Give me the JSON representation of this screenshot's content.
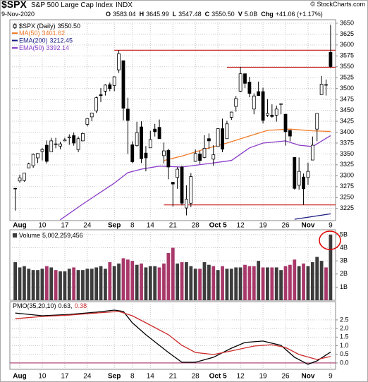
{
  "header": {
    "symbol": "$SPX",
    "name": "S&P 500 Large Cap Index",
    "exchange": "INDX",
    "credit": "© StockCharts.com",
    "date": "9-Nov-2020",
    "quote": [
      {
        "label": "O",
        "value": "3583.04"
      },
      {
        "label": "H",
        "value": "3645.99"
      },
      {
        "label": "L",
        "value": "3547.48"
      },
      {
        "label": "C",
        "value": "3550.50"
      },
      {
        "label": "V",
        "value": "5.0B"
      },
      {
        "label": "Chg",
        "value": "+41.06 (+1.17%)"
      }
    ]
  },
  "chart_data": [
    {
      "type": "candlestick",
      "name": "$SPX (Daily)",
      "last_label": "3550.50",
      "color": "#000000",
      "categories": [
        null,
        "Aug",
        null,
        null,
        null,
        null,
        "10",
        null,
        null,
        null,
        null,
        "17",
        null,
        null,
        null,
        null,
        "24",
        null,
        null,
        null,
        null,
        null,
        "Sep",
        null,
        null,
        null,
        "8",
        null,
        null,
        null,
        "14",
        null,
        null,
        null,
        null,
        "21",
        null,
        null,
        null,
        null,
        "28",
        null,
        null,
        null,
        null,
        "Oct 5",
        null,
        null,
        null,
        null,
        "12",
        null,
        null,
        null,
        null,
        "19",
        null,
        null,
        null,
        null,
        "26",
        null,
        null,
        null,
        null,
        "Nov",
        null,
        null,
        null,
        null,
        "9"
      ],
      "open": [
        3270,
        3288,
        3289,
        3318,
        3323,
        3341,
        3356,
        3370,
        3355,
        3372,
        3368,
        3380,
        3387,
        3392,
        3360,
        3380,
        3418,
        3435,
        3449,
        3486,
        3494,
        3509,
        3507,
        3543,
        3564,
        3453,
        3371,
        3369,
        3412,
        3352,
        3364,
        3407,
        3411,
        3346,
        3358,
        3285,
        3296,
        3320,
        3226,
        3237,
        3333,
        3350,
        3342,
        3385,
        3338,
        3367,
        3408,
        3385,
        3434,
        3459,
        3494,
        3534,
        3515,
        3453,
        3493,
        3493,
        3439,
        3439,
        3439,
        3464,
        3441,
        3404,
        3342,
        3278,
        3297,
        3296,
        3336,
        3407,
        3486,
        3509,
        3583.04
      ],
      "high": [
        3272,
        3302,
        3306,
        3330,
        3351,
        3352,
        3364,
        3381,
        3387,
        3387,
        3378,
        3387,
        3395,
        3399,
        3390,
        3399,
        3432,
        3444,
        3482,
        3501,
        3510,
        3514,
        3528,
        3588,
        3564,
        3479,
        3379,
        3424,
        3425,
        3368,
        3403,
        3419,
        3429,
        3376,
        3362,
        3285,
        3320,
        3323,
        3278,
        3306,
        3360,
        3357,
        3393,
        3397,
        3370,
        3409,
        3431,
        3426,
        3447,
        3483,
        3550,
        3534,
        3527,
        3489,
        3516,
        3502,
        3476,
        3464,
        3461,
        3466,
        3442,
        3405,
        3342,
        3342,
        3305,
        3330,
        3390,
        3440,
        3529,
        3521,
        3645.99
      ],
      "low": [
        3220,
        3284,
        3286,
        3318,
        3318,
        3329,
        3335,
        3328,
        3355,
        3363,
        3361,
        3379,
        3371,
        3369,
        3354,
        3379,
        3413,
        3425,
        3444,
        3469,
        3484,
        3494,
        3494,
        3536,
        3427,
        3350,
        3329,
        3367,
        3329,
        3310,
        3364,
        3390,
        3385,
        3328,
        3292,
        3229,
        3270,
        3232,
        3209,
        3228,
        3332,
        3327,
        3340,
        3361,
        3323,
        3367,
        3354,
        3385,
        3428,
        3447,
        3492,
        3501,
        3480,
        3441,
        3484,
        3420,
        3435,
        3433,
        3424,
        3441,
        3369,
        3379,
        3268,
        3268,
        3233,
        3279,
        3336,
        3379,
        3485,
        3484,
        3547.48
      ],
      "close": [
        3271,
        3295,
        3306,
        3327,
        3349,
        3351,
        3360,
        3333,
        3380,
        3373,
        3373,
        3382,
        3389,
        3375,
        3385,
        3397,
        3431,
        3444,
        3479,
        3484,
        3508,
        3500,
        3527,
        3580,
        3455,
        3427,
        3332,
        3399,
        3339,
        3341,
        3383,
        3401,
        3385,
        3357,
        3320,
        3281,
        3315,
        3237,
        3246,
        3298,
        3351,
        3335,
        3363,
        3380,
        3348,
        3408,
        3361,
        3419,
        3446,
        3477,
        3534,
        3512,
        3489,
        3483,
        3484,
        3427,
        3443,
        3436,
        3453,
        3465,
        3401,
        3391,
        3271,
        3310,
        3270,
        3310,
        3370,
        3443,
        3510,
        3509,
        3550.5
      ],
      "series": [
        {
          "name": "MA(50)",
          "last_label": "3401.62",
          "color": "#f07a28",
          "x": [
            33,
            37,
            42,
            47,
            51,
            56,
            61,
            66,
            70
          ],
          "values": [
            3335,
            3345,
            3361,
            3375,
            3388,
            3404,
            3407,
            3403,
            3401.62
          ]
        },
        {
          "name": "EMA(200)",
          "last_label": "3212.45",
          "color": "#1a1a80",
          "x": [
            62,
            70
          ],
          "values": [
            3200,
            3212.45
          ]
        },
        {
          "name": "EMA(50)",
          "last_label": "3392.14",
          "color": "#8a3cc8",
          "x": [
            10,
            15,
            22,
            25,
            28,
            32,
            37,
            43,
            48,
            52,
            55,
            60,
            63,
            66,
            70
          ],
          "values": [
            3199,
            3235,
            3283,
            3307,
            3315,
            3322,
            3320,
            3328,
            3335,
            3364,
            3375,
            3380,
            3370,
            3367,
            3392.14
          ]
        }
      ],
      "levels": [
        {
          "value": 3588,
          "start": 22,
          "color": "#c00000"
        },
        {
          "value": 3549,
          "start": 47,
          "color": "#c00000"
        },
        {
          "value": 3233,
          "start": 33,
          "color": "#c00000"
        }
      ],
      "ylim": [
        3197,
        3658
      ],
      "yticks": [
        3225,
        3250,
        3275,
        3300,
        3325,
        3350,
        3375,
        3400,
        3425,
        3450,
        3475,
        3500,
        3525,
        3550,
        3575,
        3600,
        3625,
        3650
      ],
      "grid": true
    },
    {
      "type": "bar",
      "name": "Volume",
      "last_label": "5,002,259,456",
      "up_color": "#3c3c3c",
      "down_color": "#a8386a",
      "values": [
        2.9,
        2.5,
        2.6,
        2.4,
        2.3,
        2.3,
        2.4,
        2.6,
        2.5,
        2.3,
        2.2,
        2.2,
        2.4,
        2.5,
        2.3,
        2.3,
        2.4,
        2.4,
        2.5,
        2.6,
        2.4,
        2.9,
        2.6,
        2.8,
        3.2,
        3.1,
        3.0,
        2.7,
        2.8,
        2.5,
        2.6,
        2.6,
        2.5,
        2.8,
        3.6,
        4.0,
        2.8,
        2.9,
        2.9,
        2.6,
        2.4,
        2.4,
        2.9,
        2.7,
        2.6,
        2.3,
        2.6,
        2.4,
        2.4,
        2.5,
        2.5,
        2.7,
        2.6,
        2.6,
        3.0,
        2.5,
        2.5,
        2.5,
        2.5,
        2.3,
        2.6,
        2.7,
        3.1,
        2.6,
        2.8,
        2.6,
        2.9,
        3.3,
        3.0,
        2.5,
        5.0
      ],
      "ylim": [
        0,
        5.37
      ],
      "yticks": [
        {
          "value": 1,
          "label": "1B"
        },
        {
          "value": 2,
          "label": "2B"
        },
        {
          "value": 3,
          "label": "3B"
        },
        {
          "value": 4,
          "label": "4B"
        },
        {
          "value": 5,
          "label": "5B"
        }
      ],
      "grid": true
    },
    {
      "type": "line",
      "name": "PMO(35,20,10)",
      "series": [
        {
          "legend_label": "0.63,",
          "color": "#000000",
          "x": [
            0,
            6,
            12,
            18,
            22,
            24,
            26,
            29,
            34,
            37,
            40,
            44,
            48,
            51,
            55,
            59,
            62,
            65,
            67,
            70
          ],
          "values": [
            2.9,
            2.74,
            2.82,
            2.95,
            3.07,
            2.99,
            2.33,
            1.64,
            0.61,
            0.04,
            0.04,
            0.33,
            0.86,
            1.19,
            1.27,
            1.02,
            0.33,
            -0.08,
            0.12,
            0.63
          ]
        },
        {
          "legend_label": "0.38",
          "color": "#cc2a2a",
          "x": [
            0,
            6,
            12,
            18,
            23,
            26,
            29,
            34,
            37,
            40,
            44,
            48,
            53,
            57,
            60,
            63,
            67,
            70
          ],
          "values": [
            2.57,
            2.7,
            2.78,
            2.9,
            2.99,
            2.74,
            2.33,
            1.64,
            1.02,
            0.61,
            0.49,
            0.7,
            0.98,
            1.06,
            0.9,
            0.49,
            0.2,
            0.38
          ]
        }
      ],
      "zero_line": {
        "value": 0,
        "color": "#a8386a"
      },
      "ylim": [
        -0.37,
        3.56
      ],
      "yticks": [
        0.0,
        0.5,
        1.0,
        1.5,
        2.0,
        2.5
      ],
      "grid": true
    }
  ]
}
